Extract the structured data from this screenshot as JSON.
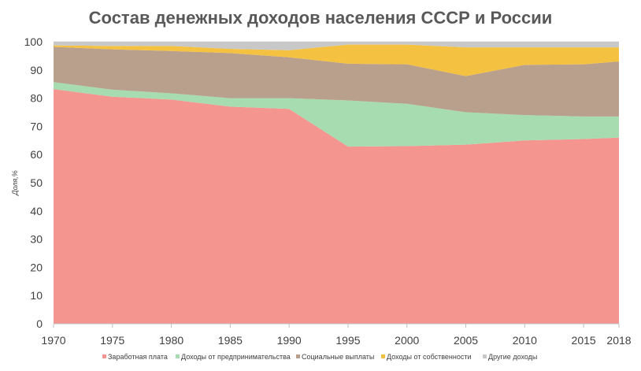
{
  "chart_data": {
    "type": "area",
    "stacked": true,
    "title": "Состав денежных доходов населения СССР и России",
    "xlabel": "",
    "ylabel": "Доля,%",
    "ylim": [
      0,
      100
    ],
    "yticks": [
      0,
      10,
      20,
      30,
      40,
      50,
      60,
      70,
      80,
      90,
      100
    ],
    "x": [
      1970,
      1975,
      1980,
      1985,
      1990,
      1995,
      2000,
      2005,
      2010,
      2015,
      2018
    ],
    "xtick_labels": [
      "1970",
      "1975",
      "1980",
      "1985",
      "1990",
      "1995",
      "2000",
      "2005",
      "2010",
      "2015",
      "2018"
    ],
    "grid": true,
    "legend_position": "bottom",
    "series": [
      {
        "name": "Заработная плата",
        "color": "#f4958f",
        "values": [
          83.2,
          80.5,
          79.5,
          77.0,
          76.2,
          62.8,
          63.0,
          63.5,
          65.0,
          65.5,
          66.0
        ]
      },
      {
        "name": "Доходы от предпринимательства",
        "color": "#a6dcb0",
        "values": [
          2.5,
          2.5,
          2.2,
          3.0,
          3.8,
          16.4,
          15.0,
          11.5,
          9.0,
          8.0,
          7.5
        ]
      },
      {
        "name": "Социальные выплаты",
        "color": "#b9a08c",
        "values": [
          12.5,
          14.3,
          15.0,
          16.0,
          14.5,
          13.0,
          14.0,
          12.8,
          17.8,
          18.5,
          19.5
        ]
      },
      {
        "name": "Доходы от собственности",
        "color": "#f5c140",
        "values": [
          0.5,
          1.2,
          1.8,
          1.5,
          2.5,
          6.8,
          7.0,
          10.2,
          6.2,
          6.0,
          5.0
        ]
      },
      {
        "name": "Другие доходы",
        "color": "#c8c8c8",
        "values": [
          1.3,
          1.5,
          1.5,
          2.5,
          3.0,
          1.0,
          1.0,
          2.0,
          2.0,
          2.0,
          2.0
        ]
      }
    ]
  }
}
